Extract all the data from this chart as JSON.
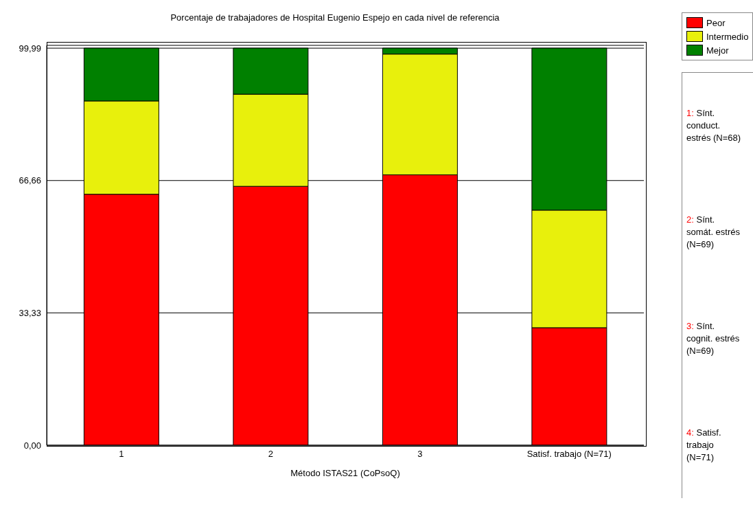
{
  "chart_data": {
    "type": "bar",
    "title": "Porcentaje de trabajadores de Hospital Eugenio Espejo en cada nivel de referencia",
    "xlabel": "Método ISTAS21 (CoPsoQ)",
    "categories": [
      "1",
      "2",
      "3",
      "Satisf. trabajo (N=71)"
    ],
    "stacked": true,
    "series": [
      {
        "name": "Peor",
        "color": "#ff0000",
        "values": [
          63.2,
          65.2,
          68.1,
          29.6
        ]
      },
      {
        "name": "Intermedio",
        "color": "#e8f00c",
        "values": [
          23.5,
          23.2,
          30.4,
          29.6
        ]
      },
      {
        "name": "Mejor",
        "color": "#008000",
        "values": [
          13.3,
          11.6,
          1.5,
          40.8
        ]
      }
    ],
    "ylim": [
      0,
      100.7
    ],
    "yticks": [
      {
        "value": 0,
        "label": "0,00"
      },
      {
        "value": 33.33,
        "label": "33,33"
      },
      {
        "value": 66.66,
        "label": "66,66"
      },
      {
        "value": 99.99,
        "label": "99,99"
      }
    ],
    "grid": "y",
    "legend": "top right",
    "annotations": [
      "1: Sínt. conduct. estrés (N=68)",
      "2: Sínt. somát. estrés (N=69)",
      "3: Sínt. cognit. estrés (N=69)",
      "4: Satisf. trabajo (N=71)"
    ]
  }
}
